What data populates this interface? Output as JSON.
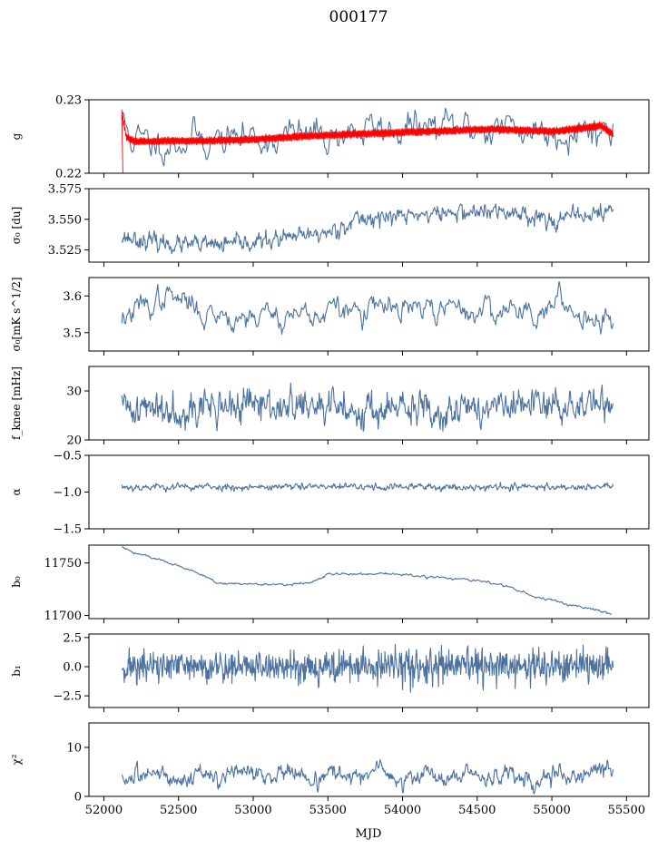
{
  "figure": {
    "title": "000177",
    "xlabel": "MJD",
    "xlim": [
      51900,
      55650
    ],
    "xticks": [
      "52000",
      "52500",
      "53000",
      "53500",
      "54000",
      "54500",
      "55000",
      "55500"
    ],
    "xtick_values": [
      52000,
      52500,
      53000,
      53500,
      54000,
      54500,
      55000,
      55500
    ],
    "colors": {
      "series": "#4c72a0",
      "highlight": "#ff0000",
      "axis": "#000000"
    }
  },
  "chart_data": [
    {
      "type": "line",
      "ylabel": "g",
      "ylim": [
        0.22,
        0.23
      ],
      "yticks": [
        "0.22",
        "0.23"
      ],
      "ytick_values": [
        0.22,
        0.23
      ],
      "x_range": [
        52120,
        55410
      ],
      "series": [
        {
          "kind": "noisy",
          "color": "#4c72a0",
          "stroke": 1.1,
          "x": [
            52120,
            52150,
            52200,
            52300,
            52400,
            52600,
            52800,
            53000,
            53400,
            53700,
            54000,
            54300,
            54700,
            55000,
            55300,
            55410
          ],
          "values": [
            0.2278,
            0.2258,
            0.2247,
            0.2239,
            0.2243,
            0.2247,
            0.2246,
            0.2248,
            0.2252,
            0.2257,
            0.2261,
            0.226,
            0.2262,
            0.2257,
            0.2262,
            0.226
          ],
          "noise": 0.0013,
          "smooth": 0.7,
          "n": 420,
          "seed": 11
        },
        {
          "kind": "band",
          "color": "#ff0000",
          "stroke": 0.9,
          "x": [
            52120,
            52150,
            52200,
            52400,
            52700,
            53000,
            53400,
            53800,
            54200,
            54600,
            55000,
            55250,
            55330,
            55410
          ],
          "values": [
            0.2282,
            0.225,
            0.2243,
            0.2244,
            0.2244,
            0.2246,
            0.2251,
            0.2254,
            0.2257,
            0.226,
            0.2257,
            0.2262,
            0.2265,
            0.2253
          ],
          "noise": 0.00055,
          "n": 900,
          "seed": 5
        }
      ]
    },
    {
      "type": "line",
      "ylabel": "σ₀ [du]",
      "ylim": [
        3.515,
        3.575
      ],
      "yticks": [
        "3.525",
        "3.550",
        "3.575"
      ],
      "ytick_values": [
        3.525,
        3.55,
        3.575
      ],
      "series": [
        {
          "kind": "noisy",
          "color": "#4c72a0",
          "stroke": 1.1,
          "x": [
            52120,
            52300,
            52500,
            52800,
            53000,
            53200,
            53500,
            53700,
            54000,
            54300,
            54500,
            54800,
            55000,
            55200,
            55410
          ],
          "values": [
            3.536,
            3.532,
            3.529,
            3.529,
            3.531,
            3.534,
            3.539,
            3.55,
            3.553,
            3.555,
            3.556,
            3.555,
            3.549,
            3.553,
            3.557
          ],
          "noise": 0.0035,
          "smooth": 0.45,
          "n": 700,
          "seed": 23
        }
      ]
    },
    {
      "type": "line",
      "ylabel": "σ₀[mK s^1/2]",
      "ylim": [
        3.45,
        3.65
      ],
      "yticks": [
        "3.5",
        "3.6"
      ],
      "ytick_values": [
        3.5,
        3.6
      ],
      "series": [
        {
          "kind": "noisy",
          "color": "#4c72a0",
          "stroke": 1.1,
          "x": [
            52120,
            52300,
            52400,
            52700,
            53000,
            53500,
            54000,
            54500,
            55000,
            55410
          ],
          "values": [
            3.54,
            3.57,
            3.6,
            3.555,
            3.55,
            3.555,
            3.56,
            3.56,
            3.57,
            3.545
          ],
          "noise": 0.022,
          "smooth": 0.8,
          "n": 520,
          "seed": 37
        }
      ]
    },
    {
      "type": "line",
      "ylabel": "f_knee [mHz]",
      "ylim": [
        20,
        35
      ],
      "yticks": [
        "20",
        "30"
      ],
      "ytick_values": [
        20,
        30
      ],
      "series": [
        {
          "kind": "noisy",
          "color": "#4c72a0",
          "stroke": 1.1,
          "x": [
            52120,
            52500,
            53000,
            53500,
            54000,
            54500,
            55000,
            55410
          ],
          "values": [
            26.5,
            26.5,
            27.0,
            26.5,
            26.0,
            26.5,
            27.0,
            27.5
          ],
          "noise": 1.8,
          "smooth": 0.5,
          "n": 760,
          "seed": 41
        }
      ]
    },
    {
      "type": "line",
      "ylabel": "α",
      "ylim": [
        -1.5,
        -0.5
      ],
      "yticks": [
        "−1.5",
        "−1.0",
        "−0.5"
      ],
      "ytick_values": [
        -1.5,
        -1.0,
        -0.5
      ],
      "series": [
        {
          "kind": "noisy",
          "color": "#4c72a0",
          "stroke": 1.1,
          "x": [
            52120,
            55410
          ],
          "values": [
            -0.93,
            -0.93
          ],
          "noise": 0.025,
          "smooth": 0.5,
          "n": 760,
          "seed": 53
        }
      ]
    },
    {
      "type": "line",
      "ylabel": "b₀",
      "ylim": [
        11697,
        11767
      ],
      "yticks": [
        "11700",
        "11750"
      ],
      "ytick_values": [
        11700,
        11750
      ],
      "series": [
        {
          "kind": "noisy",
          "color": "#4c72a0",
          "stroke": 1.1,
          "x": [
            52120,
            52200,
            52400,
            52600,
            52700,
            52750,
            53000,
            53200,
            53350,
            53400,
            53500,
            53800,
            54000,
            54500,
            54700,
            54900,
            55200,
            55400
          ],
          "values": [
            11765,
            11760,
            11752,
            11742,
            11736,
            11731,
            11730,
            11729,
            11731,
            11733,
            11739,
            11740,
            11739,
            11733,
            11728,
            11717,
            11708,
            11702
          ],
          "noise": 0.6,
          "smooth": 0.6,
          "n": 640,
          "seed": 61
        }
      ]
    },
    {
      "type": "line",
      "ylabel": "b₁",
      "ylim": [
        -3.5,
        2.8
      ],
      "yticks": [
        "−2.5",
        "0.0",
        "2.5"
      ],
      "ytick_values": [
        -2.5,
        0.0,
        2.5
      ],
      "series": [
        {
          "kind": "noisy",
          "color": "#4c72a0",
          "stroke": 1.1,
          "x": [
            52120,
            55410
          ],
          "values": [
            0.0,
            0.0
          ],
          "noise": 0.7,
          "smooth": 0.1,
          "n": 1000,
          "seed": 71
        }
      ]
    },
    {
      "type": "line",
      "ylabel": "χ²",
      "ylim": [
        0,
        15
      ],
      "yticks": [
        "0",
        "10"
      ],
      "ytick_values": [
        0,
        10
      ],
      "series": [
        {
          "kind": "noisy",
          "color": "#4c72a0",
          "stroke": 1.1,
          "x": [
            52120,
            52200,
            52350,
            52500,
            52650,
            52800,
            52950,
            53100,
            53250,
            53400,
            53550,
            53700,
            53850,
            54000,
            54150,
            54300,
            54450,
            54600,
            54750,
            54900,
            55050,
            55200,
            55350,
            55410
          ],
          "values": [
            4.0,
            3.0,
            5.5,
            3.0,
            5.0,
            3.0,
            5.5,
            4.0,
            5.5,
            3.0,
            5.0,
            3.5,
            5.5,
            3.0,
            5.0,
            3.0,
            5.0,
            3.5,
            5.0,
            3.0,
            5.0,
            3.5,
            6.0,
            4.5
          ],
          "noise": 0.9,
          "smooth": 0.6,
          "n": 760,
          "seed": 83
        }
      ]
    }
  ]
}
